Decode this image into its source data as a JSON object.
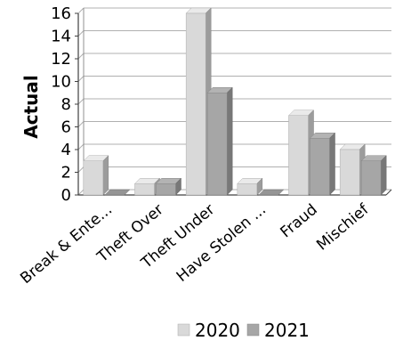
{
  "chart_data": {
    "type": "bar",
    "title": "",
    "xlabel": "",
    "ylabel": "Actual",
    "ylim": [
      0,
      16
    ],
    "yticks": [
      0,
      2,
      4,
      6,
      8,
      10,
      12,
      14,
      16
    ],
    "grid": true,
    "style": "3d-clustered-column",
    "legend_position": "bottom",
    "categories": [
      "Break & Ente...",
      "Theft Over",
      "Theft Under",
      "Have Stolen ...",
      "Fraud",
      "Mischief"
    ],
    "series": [
      {
        "name": "2020",
        "color": "#d9d9d9",
        "values": [
          3,
          1,
          16,
          1,
          7,
          4
        ]
      },
      {
        "name": "2021",
        "color": "#a6a6a6",
        "values": [
          0,
          1,
          9,
          0,
          5,
          3
        ]
      }
    ]
  }
}
